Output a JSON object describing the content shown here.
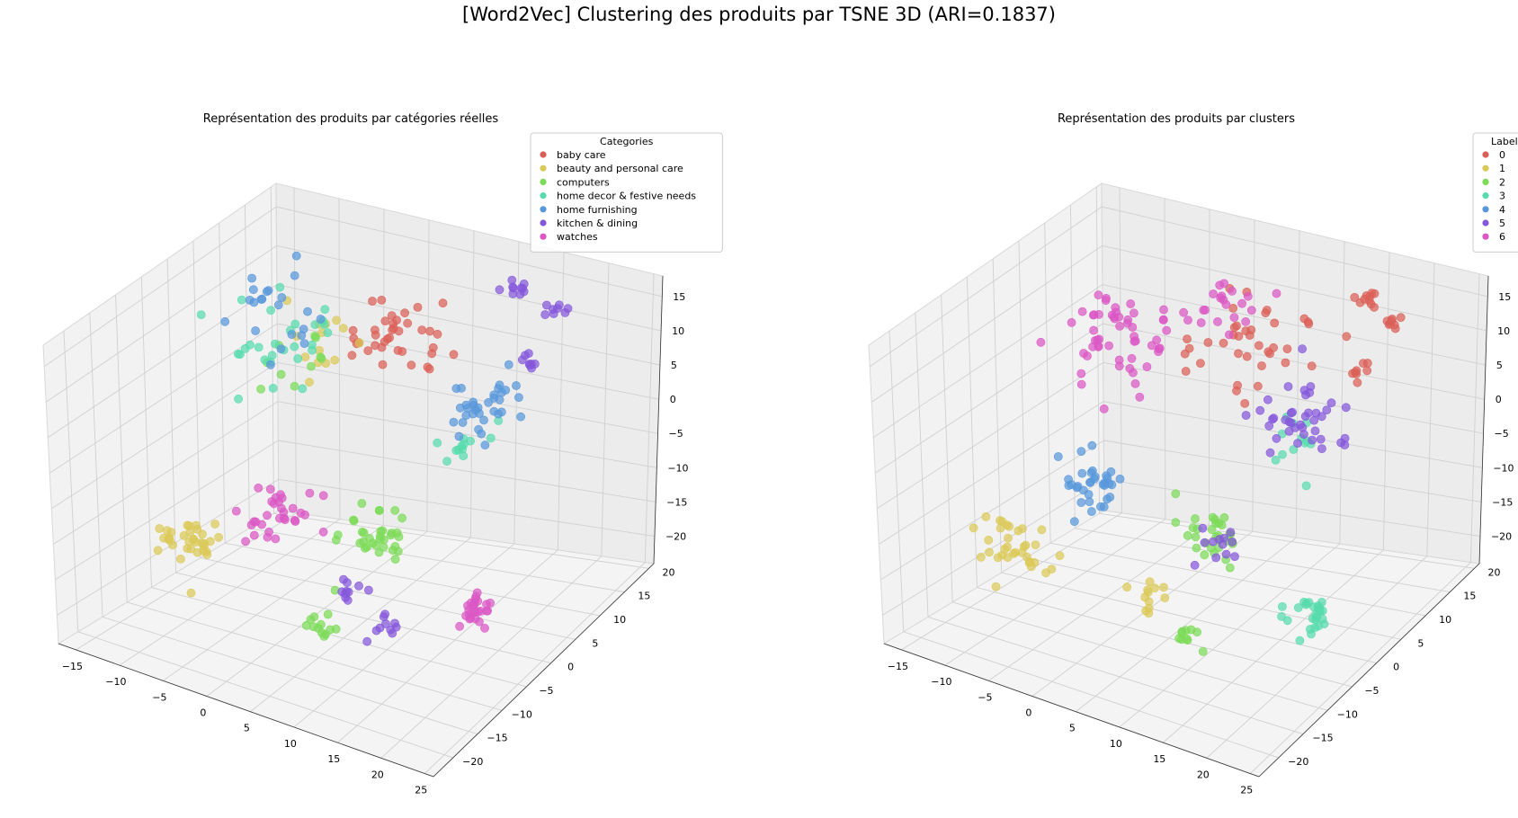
{
  "figure": {
    "suptitle": "[Word2Vec] Clustering des produits par TSNE 3D (ARI=0.1837)"
  },
  "chart_data": [
    {
      "type": "scatter",
      "subtype": "3d",
      "title": "Représentation des produits par catégories réelles",
      "xlabel": "",
      "ylabel": "",
      "zlabel": "",
      "xlim": [
        -17,
        26
      ],
      "ylim": [
        -24,
        21
      ],
      "zlim": [
        -24,
        18
      ],
      "xticks": [
        "−15",
        "−10",
        "−5",
        "0",
        "5",
        "10",
        "15",
        "20",
        "25"
      ],
      "yticks": [
        "−20",
        "−15",
        "−10",
        "−5",
        "0",
        "5",
        "10",
        "15",
        "20"
      ],
      "zticks": [
        "−20",
        "−15",
        "−10",
        "−5",
        "0",
        "5",
        "10",
        "15"
      ],
      "legend": {
        "title": "Categories",
        "position": "top-right"
      },
      "grid": true,
      "series": [
        {
          "name": "baby care",
          "color": "#db5f57",
          "clusters": [
            {
              "x": 4,
              "y": 8,
              "z": 10,
              "n": 38,
              "spread": 2.6
            }
          ]
        },
        {
          "name": "beauty and personal care",
          "color": "#dbc957",
          "clusters": [
            {
              "x": -13,
              "y": -4,
              "z": -17,
              "n": 34,
              "spread": 1.8
            },
            {
              "x": -2,
              "y": 3,
              "z": 10,
              "n": 14,
              "spread": 2.5
            }
          ]
        },
        {
          "name": "computers",
          "color": "#7bdb57",
          "clusters": [
            {
              "x": 6,
              "y": 0,
              "z": -12,
              "n": 34,
              "spread": 1.9
            },
            {
              "x": 4,
              "y": -8,
              "z": -21,
              "n": 12,
              "spread": 0.8
            },
            {
              "x": -5,
              "y": 2,
              "z": 7,
              "n": 10,
              "spread": 2.5
            }
          ]
        },
        {
          "name": "home decor & festive needs",
          "color": "#57dbad",
          "clusters": [
            {
              "x": -8,
              "y": 5,
              "z": 7,
              "n": 28,
              "spread": 2.8
            },
            {
              "x": 9,
              "y": 12,
              "z": -6,
              "n": 12,
              "spread": 1.5
            }
          ]
        },
        {
          "name": "home furnishing",
          "color": "#5797db",
          "clusters": [
            {
              "x": 10,
              "y": 16,
              "z": -2,
              "n": 34,
              "spread": 2.0
            },
            {
              "x": -7,
              "y": 5,
              "z": 11,
              "n": 22,
              "spread": 2.8
            }
          ]
        },
        {
          "name": "kitchen & dining",
          "color": "#8557db",
          "clusters": [
            {
              "x": 12,
              "y": 17,
              "z": 14,
              "n": 10,
              "spread": 0.7
            },
            {
              "x": 15,
              "y": 20,
              "z": 10,
              "n": 8,
              "spread": 0.6
            },
            {
              "x": 14,
              "y": 16,
              "z": 5,
              "n": 8,
              "spread": 0.6
            },
            {
              "x": 5,
              "y": -4,
              "z": -18,
              "n": 10,
              "spread": 0.8
            },
            {
              "x": 10,
              "y": -6,
              "z": -20,
              "n": 10,
              "spread": 0.8
            }
          ]
        },
        {
          "name": "watches",
          "color": "#db57c5",
          "clusters": [
            {
              "x": -6,
              "y": 1,
              "z": -13,
              "n": 32,
              "spread": 1.8
            },
            {
              "x": 19,
              "y": -3,
              "z": -17,
              "n": 26,
              "spread": 1.2
            }
          ]
        }
      ]
    },
    {
      "type": "scatter",
      "subtype": "3d",
      "title": "Représentation des produits par clusters",
      "xlabel": "",
      "ylabel": "",
      "zlabel": "",
      "xlim": [
        -17,
        26
      ],
      "ylim": [
        -24,
        21
      ],
      "zlim": [
        -24,
        18
      ],
      "xticks": [
        "−15",
        "−10",
        "−5",
        "0",
        "5",
        "10",
        "15",
        "20",
        "25"
      ],
      "yticks": [
        "−20",
        "−15",
        "−10",
        "−5",
        "0",
        "5",
        "10",
        "15",
        "20"
      ],
      "zticks": [
        "−20",
        "−15",
        "−10",
        "−5",
        "0",
        "5",
        "10",
        "15"
      ],
      "legend": {
        "title": "Labels",
        "position": "top-right"
      },
      "grid": true,
      "series": [
        {
          "name": "0",
          "color": "#db5f57",
          "clusters": [
            {
              "x": 6,
              "y": 10,
              "z": 9,
              "n": 38,
              "spread": 2.8
            },
            {
              "x": 14,
              "y": 18,
              "z": 13,
              "n": 10,
              "spread": 0.7
            },
            {
              "x": 16,
              "y": 20,
              "z": 9,
              "n": 8,
              "spread": 0.6
            },
            {
              "x": 15,
              "y": 16,
              "z": 4,
              "n": 8,
              "spread": 0.6
            }
          ]
        },
        {
          "name": "1",
          "color": "#dbc957",
          "clusters": [
            {
              "x": -13,
              "y": -4,
              "z": -17,
              "n": 34,
              "spread": 1.8
            },
            {
              "x": 3,
              "y": -6,
              "z": -19,
              "n": 12,
              "spread": 0.9
            }
          ]
        },
        {
          "name": "2",
          "color": "#7bdb57",
          "clusters": [
            {
              "x": 6,
              "y": 1,
              "z": -13,
              "n": 30,
              "spread": 2.0
            },
            {
              "x": 9,
              "y": -8,
              "z": -21,
              "n": 10,
              "spread": 0.8
            }
          ]
        },
        {
          "name": "3",
          "color": "#57dbad",
          "clusters": [
            {
              "x": 20,
              "y": -2,
              "z": -18,
              "n": 28,
              "spread": 1.2
            },
            {
              "x": 9,
              "y": 12,
              "z": -6,
              "n": 12,
              "spread": 1.5
            }
          ]
        },
        {
          "name": "4",
          "color": "#5797db",
          "clusters": [
            {
              "x": -7,
              "y": 1,
              "z": -10,
              "n": 34,
              "spread": 1.9
            }
          ]
        },
        {
          "name": "5",
          "color": "#8557db",
          "clusters": [
            {
              "x": 10,
              "y": 14,
              "z": -3,
              "n": 40,
              "spread": 2.3
            },
            {
              "x": 7,
              "y": 2,
              "z": -14,
              "n": 12,
              "spread": 1.5
            }
          ]
        },
        {
          "name": "6",
          "color": "#db57c5",
          "clusters": [
            {
              "x": -6,
              "y": 5,
              "z": 9,
              "n": 55,
              "spread": 3.2
            },
            {
              "x": 2,
              "y": 11,
              "z": 12,
              "n": 20,
              "spread": 2.2
            }
          ]
        }
      ]
    }
  ]
}
